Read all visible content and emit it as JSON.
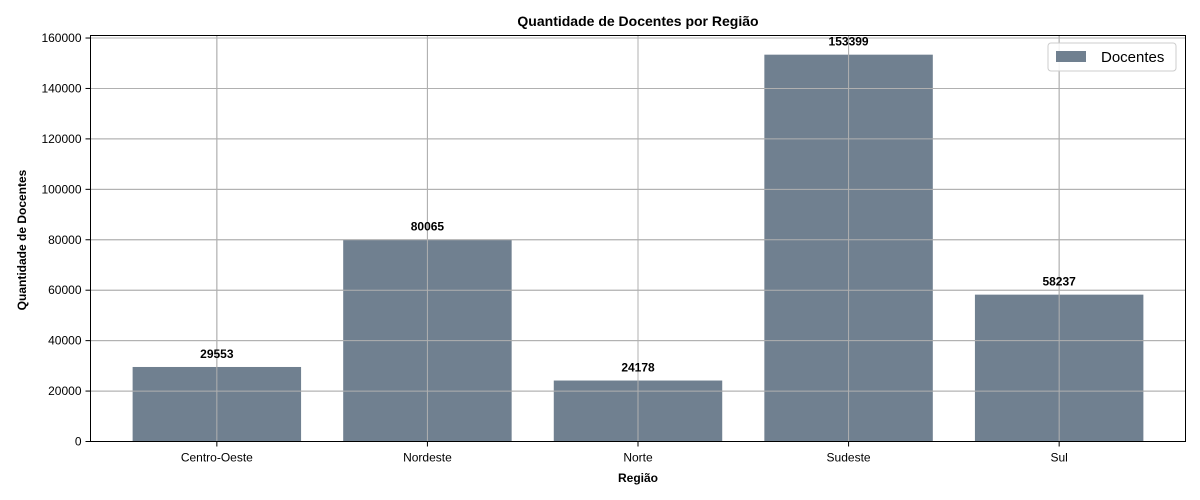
{
  "chart_data": {
    "type": "bar",
    "title": "Quantidade de Docentes por Região",
    "xlabel": "Região",
    "ylabel": "Quantidade de Docentes",
    "categories": [
      "Centro-Oeste",
      "Nordeste",
      "Norte",
      "Sudeste",
      "Sul"
    ],
    "series": [
      {
        "name": "Docentes",
        "values": [
          29553,
          80065,
          24178,
          153399,
          58237
        ],
        "color": "#708090"
      }
    ],
    "data_labels": [
      "29553",
      "80065",
      "24178",
      "153399",
      "58237"
    ],
    "ylim": [
      0,
      161000
    ],
    "yticks": [
      0,
      20000,
      40000,
      60000,
      80000,
      100000,
      120000,
      140000,
      160000
    ],
    "ytick_labels": [
      "0",
      "20000",
      "40000",
      "60000",
      "80000",
      "100000",
      "120000",
      "140000",
      "160000"
    ],
    "grid": true,
    "legend_position": "top-right"
  }
}
